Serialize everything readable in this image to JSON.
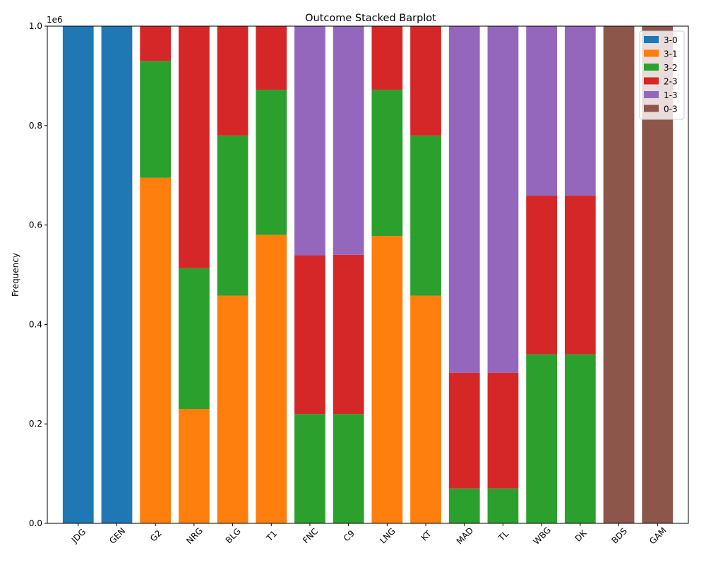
{
  "chart_data": {
    "type": "bar",
    "stacked": true,
    "title": "Outcome Stacked Barplot",
    "xlabel": "",
    "ylabel": "Frequency",
    "y_offset_label": "1e6",
    "ylim": [
      0,
      1.0
    ],
    "yticks": [
      "0.0",
      "0.2",
      "0.4",
      "0.6",
      "0.8",
      "1.0"
    ],
    "grid": false,
    "legend_position": "top-right",
    "categories": [
      "JDG",
      "GEN",
      "G2",
      "NRG",
      "BLG",
      "T1",
      "FNC",
      "C9",
      "LNG",
      "KT",
      "MAD",
      "TL",
      "WBG",
      "DK",
      "BDS",
      "GAM"
    ],
    "series": [
      {
        "name": "3-0",
        "color": "#1f77b4",
        "values": [
          1.0,
          1.0,
          0,
          0,
          0,
          0,
          0,
          0,
          0,
          0,
          0,
          0,
          0,
          0,
          0,
          0
        ]
      },
      {
        "name": "3-1",
        "color": "#ff7f0e",
        "values": [
          0,
          0,
          0.695,
          0.23,
          0.458,
          0.58,
          0,
          0,
          0.578,
          0.458,
          0,
          0,
          0,
          0,
          0,
          0
        ]
      },
      {
        "name": "3-2",
        "color": "#2ca02c",
        "values": [
          0,
          0,
          0.235,
          0.283,
          0.322,
          0.292,
          0.22,
          0.22,
          0.294,
          0.322,
          0.07,
          0.07,
          0.34,
          0.34,
          0,
          0
        ]
      },
      {
        "name": "2-3",
        "color": "#d62728",
        "values": [
          0,
          0,
          0.07,
          0.487,
          0.22,
          0.128,
          0.319,
          0.32,
          0.128,
          0.22,
          0.233,
          0.233,
          0.319,
          0.319,
          0,
          0
        ]
      },
      {
        "name": "1-3",
        "color": "#9467bd",
        "values": [
          0,
          0,
          0,
          0,
          0,
          0,
          0.461,
          0.46,
          0,
          0,
          0.697,
          0.697,
          0.341,
          0.341,
          0,
          0
        ]
      },
      {
        "name": "0-3",
        "color": "#8c564b",
        "values": [
          0,
          0,
          0,
          0,
          0,
          0,
          0,
          0,
          0,
          0,
          0,
          0,
          0,
          0,
          1.0,
          1.0
        ]
      }
    ]
  }
}
